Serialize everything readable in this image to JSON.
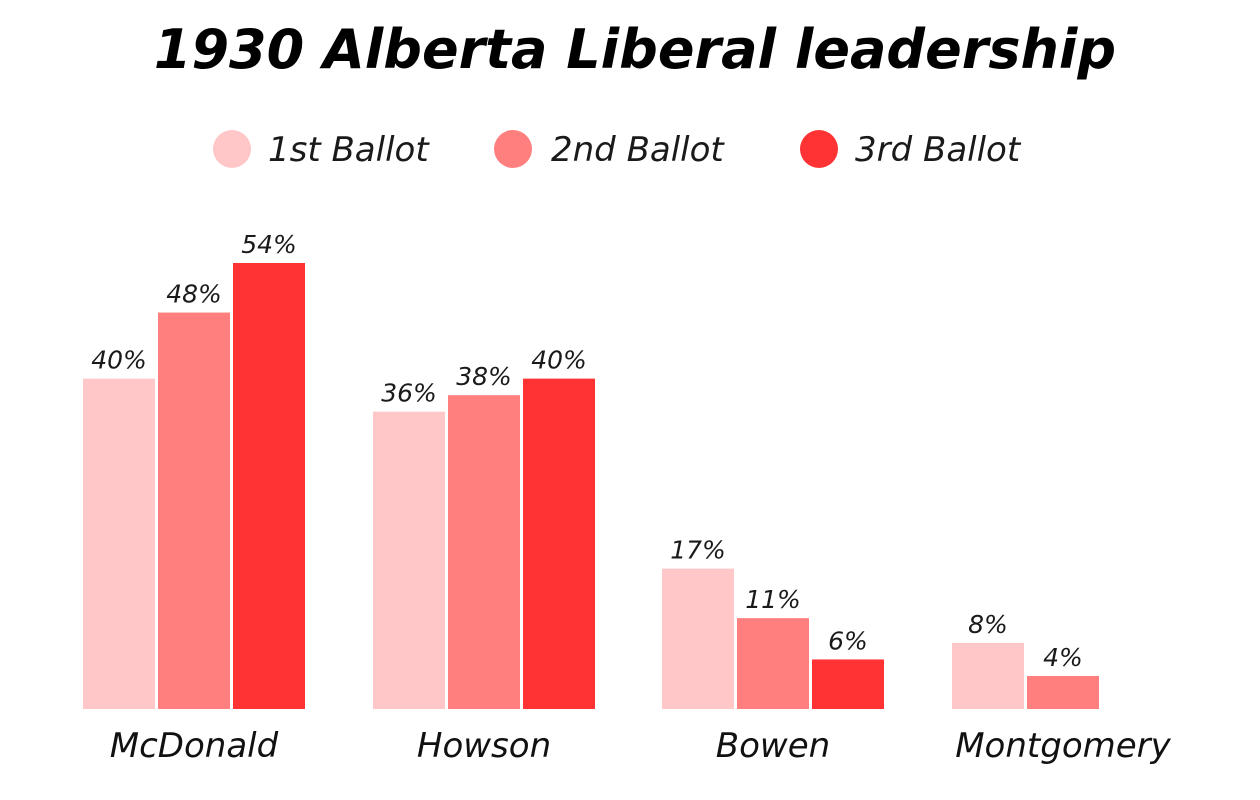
{
  "chart_data": {
    "type": "bar",
    "title": "1930 Alberta Liberal leadership",
    "categories": [
      "McDonald",
      "Howson",
      "Bowen",
      "Montgomery"
    ],
    "series": [
      {
        "name": "1st Ballot",
        "color": "#ffc7c7",
        "values": [
          40,
          36,
          17,
          8
        ],
        "labels": [
          "40%",
          "36%",
          "17%",
          "8%"
        ]
      },
      {
        "name": "2nd Ballot",
        "color": "#ff7f7f",
        "values": [
          48,
          38,
          11,
          4
        ],
        "labels": [
          "48%",
          "38%",
          "11%",
          "4%"
        ]
      },
      {
        "name": "3rd Ballot",
        "color": "#ff3333",
        "values": [
          54,
          40,
          6,
          null
        ],
        "labels": [
          "54%",
          "40%",
          "6%",
          null
        ]
      }
    ],
    "ylim": [
      0,
      54
    ],
    "grid": false,
    "legend": "top-center"
  }
}
